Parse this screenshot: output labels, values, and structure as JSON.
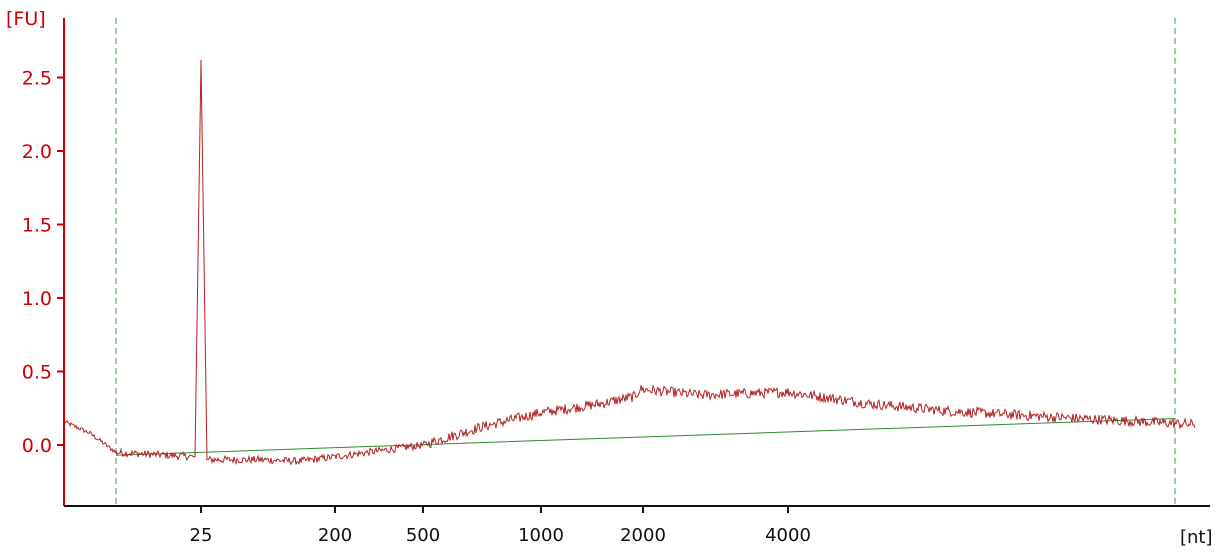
{
  "chart_data": {
    "type": "line",
    "title": "",
    "ylabel": "[FU]",
    "xlabel": "[nt]",
    "ylim": [
      -0.42,
      2.92
    ],
    "yticks": [
      0.0,
      0.5,
      1.0,
      1.5,
      2.0,
      2.5
    ],
    "ytick_labels": [
      "0.0",
      "0.5",
      "1.0",
      "1.5",
      "2.0",
      "2.5"
    ],
    "xtick_labels": [
      "25",
      "200",
      "500",
      "1000",
      "2000",
      "4000"
    ],
    "x_axis_scale": "nonlinear (electropherogram, nucleotides)",
    "grid": false,
    "markers": {
      "lower_marker_line": "dashed green vertical line before 25 nt",
      "upper_marker_line": "dashed green vertical line at right end"
    },
    "series": [
      {
        "values_desc": "electropherogram trace",
        "x": [
          null,
          null,
          null,
          "25",
          "25",
          "25",
          null,
          null,
          "200",
          "500",
          null,
          "1000",
          null,
          "2000",
          "2000",
          null,
          "4000",
          null,
          null,
          null,
          null
        ],
        "y": [
          0.16,
          0.08,
          -0.05,
          -0.08,
          2.62,
          -0.1,
          -0.1,
          -0.11,
          -0.08,
          0.0,
          0.12,
          0.22,
          0.28,
          0.33,
          0.38,
          0.34,
          0.36,
          0.28,
          0.23,
          0.18,
          0.14
        ]
      }
    ],
    "baseline": {
      "from_y": -0.07,
      "to_y": 0.18
    }
  },
  "colors": {
    "trace": "#b22222",
    "baseline": "#2e8b2e",
    "marker_lines": "#3c9a3c",
    "y_axis": "#cc0000",
    "x_axis": "#111111"
  }
}
